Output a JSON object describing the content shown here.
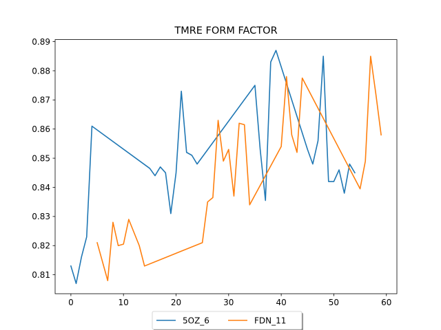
{
  "chart_data": {
    "type": "line",
    "title": "TMRE FORM FACTOR",
    "xlabel": "",
    "ylabel": "",
    "xlim": [
      -3,
      62
    ],
    "ylim": [
      0.8035,
      0.8907
    ],
    "xticks": [
      0,
      10,
      20,
      30,
      40,
      50,
      60
    ],
    "yticks": [
      0.81,
      0.82,
      0.83,
      0.84,
      0.85,
      0.86,
      0.87,
      0.88,
      0.89
    ],
    "grid": false,
    "legend_position": "bottom-center",
    "series": [
      {
        "name": "5OZ_6",
        "color": "#1f77b4",
        "x": [
          0,
          1,
          2,
          3,
          4,
          15,
          16,
          17,
          18,
          19,
          20,
          21,
          22,
          23,
          24,
          35,
          36,
          37,
          38,
          39,
          45,
          46,
          47,
          48,
          49,
          50,
          51,
          52,
          53,
          54
        ],
        "y": [
          0.813,
          0.807,
          0.816,
          0.823,
          0.861,
          0.8465,
          0.844,
          0.847,
          0.845,
          0.831,
          0.845,
          0.873,
          0.852,
          0.851,
          0.848,
          0.875,
          0.853,
          0.8355,
          0.883,
          0.887,
          0.853,
          0.848,
          0.856,
          0.885,
          0.842,
          0.842,
          0.846,
          0.838,
          0.848,
          0.845
        ]
      },
      {
        "name": "FDN_11",
        "color": "#ff7f0e",
        "x": [
          5,
          6,
          7,
          8,
          9,
          10,
          11,
          13,
          14,
          25,
          26,
          27,
          28,
          29,
          30,
          31,
          32,
          33,
          34,
          40,
          41,
          42,
          43,
          44,
          55,
          56,
          57,
          58,
          59
        ],
        "y": [
          0.821,
          0.8145,
          0.808,
          0.828,
          0.82,
          0.8205,
          0.829,
          0.82,
          0.813,
          0.821,
          0.835,
          0.8365,
          0.863,
          0.849,
          0.853,
          0.837,
          0.862,
          0.8615,
          0.834,
          0.854,
          0.878,
          0.858,
          0.852,
          0.8775,
          0.8395,
          0.849,
          0.885,
          0.872,
          0.858
        ]
      }
    ]
  }
}
